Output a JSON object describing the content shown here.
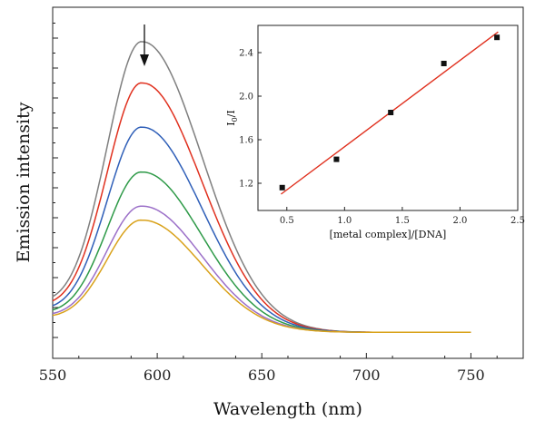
{
  "chart_data": [
    {
      "type": "line",
      "xlabel": "Wavelength (nm)",
      "ylabel": "Emission intensity",
      "xlim": [
        550,
        775
      ],
      "ylim": [
        -0.08,
        1.0
      ],
      "x_ticks": [
        550,
        600,
        650,
        700,
        750
      ],
      "y_tick_labels_shown": false,
      "grid": false,
      "legend": "none",
      "annotation": "downward arrow at peak (~593 nm) indicating decreasing intensity",
      "peak_wavelength": 593,
      "x_end": 750,
      "series": [
        {
          "color": "#7f7f7f",
          "peak": 0.894,
          "start": 0.11
        },
        {
          "color": "#e0301e",
          "peak": 0.767,
          "start": 0.097
        },
        {
          "color": "#2f5fb8",
          "peak": 0.631,
          "start": 0.082
        },
        {
          "color": "#2e9a48",
          "peak": 0.493,
          "start": 0.069
        },
        {
          "color": "#9b6fc8",
          "peak": 0.388,
          "start": 0.058
        },
        {
          "color": "#d9a21b",
          "peak": 0.345,
          "start": 0.052
        }
      ]
    },
    {
      "type": "scatter",
      "xlabel": "[metal complex]/[DNA]",
      "ylabel": "I0/I",
      "ylabel_main": "I",
      "ylabel_sub": "0",
      "ylabel_rest": "/I",
      "xlim": [
        0.25,
        2.5
      ],
      "ylim": [
        0.95,
        2.65
      ],
      "x_ticks": [
        "0.5",
        "1.0",
        "1.5",
        "2.0",
        "2.5"
      ],
      "y_ticks": [
        "1.2",
        "1.6",
        "2.0",
        "2.4"
      ],
      "points": [
        {
          "x": 0.46,
          "y": 1.16
        },
        {
          "x": 0.93,
          "y": 1.42
        },
        {
          "x": 1.4,
          "y": 1.85
        },
        {
          "x": 1.86,
          "y": 2.3
        },
        {
          "x": 2.32,
          "y": 2.54
        }
      ],
      "fit_line": {
        "x": [
          0.45,
          2.33
        ],
        "y": [
          1.1,
          2.59
        ],
        "color": "#e0301e"
      }
    }
  ]
}
